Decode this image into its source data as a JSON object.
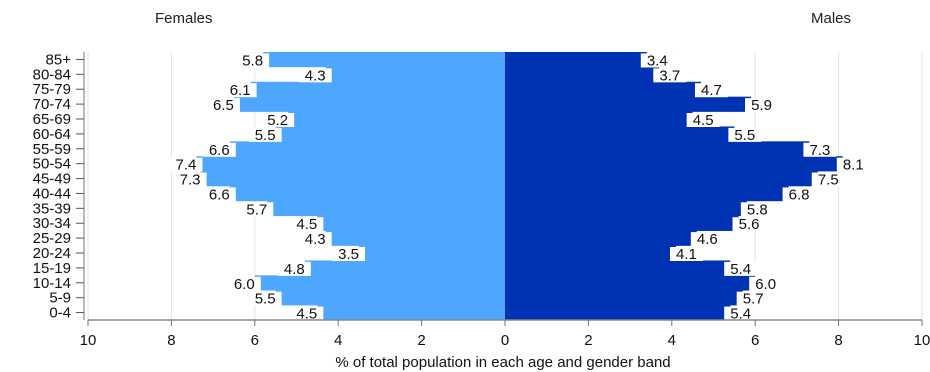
{
  "legend": {
    "females": "Females",
    "males": "Males"
  },
  "chart_data": {
    "type": "bar",
    "orientation": "horizontal-population-pyramid",
    "xlabel": "% of total population in each age and gender band",
    "xlim": [
      -10,
      10
    ],
    "xticks": [
      -10,
      -8,
      -6,
      -4,
      -2,
      0,
      2,
      4,
      6,
      8,
      10
    ],
    "xtick_labels": [
      "10",
      "8",
      "6",
      "4",
      "2",
      "0",
      "2",
      "4",
      "6",
      "8",
      "10"
    ],
    "categories": [
      "85+",
      "80-84",
      "75-79",
      "70-74",
      "65-69",
      "60-64",
      "55-59",
      "50-54",
      "45-49",
      "40-44",
      "35-39",
      "30-34",
      "25-29",
      "20-24",
      "15-19",
      "10-14",
      "5-9",
      "0-4"
    ],
    "series": [
      {
        "name": "Females",
        "color": "#4da6ff",
        "values": [
          5.8,
          4.3,
          6.1,
          6.5,
          5.2,
          5.5,
          6.6,
          7.4,
          7.3,
          6.6,
          5.7,
          4.5,
          4.3,
          3.5,
          4.8,
          6.0,
          5.5,
          4.5
        ],
        "labels": [
          "5.8",
          "4.3",
          "6.1",
          "6.5",
          "5.2",
          "5.5",
          "6.6",
          "7.4",
          "7.3",
          "6.6",
          "5.7",
          "4.5",
          "4.3",
          "3.5",
          "4.8",
          "6.0",
          "5.5",
          "4.5"
        ]
      },
      {
        "name": "Males",
        "color": "#0033b3",
        "values": [
          3.4,
          3.7,
          4.7,
          5.9,
          4.5,
          5.5,
          7.3,
          8.1,
          7.5,
          6.8,
          5.8,
          5.6,
          4.6,
          4.1,
          5.4,
          6.0,
          5.7,
          5.4
        ],
        "labels": [
          "3.4",
          "3.7",
          "4.7",
          "5.9",
          "4.5",
          "5.5",
          "7.3",
          "8.1",
          "7.5",
          "6.8",
          "5.8",
          "5.6",
          "4.6",
          "4.1",
          "5.4",
          "6.0",
          "5.7",
          "5.4"
        ]
      }
    ],
    "grid": true,
    "legend_position": "top"
  }
}
